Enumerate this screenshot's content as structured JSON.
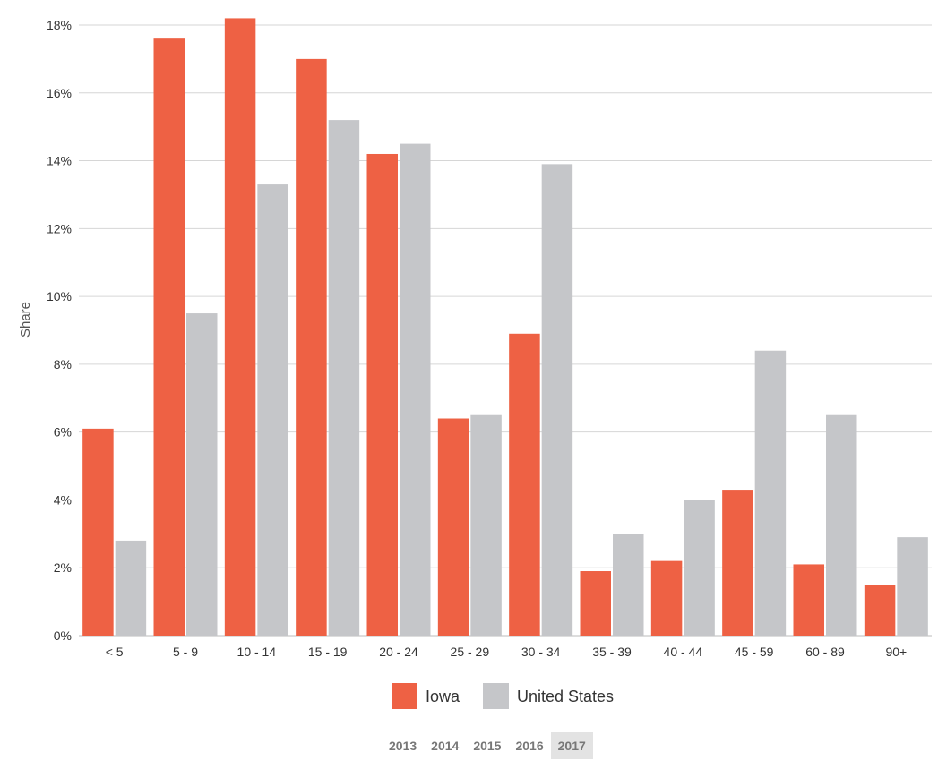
{
  "chart_data": {
    "type": "bar",
    "title": "",
    "xlabel": "",
    "ylabel": "Share",
    "ylim": [
      0,
      18
    ],
    "y_tick_values": [
      0,
      2,
      4,
      6,
      8,
      10,
      12,
      14,
      16,
      18
    ],
    "y_tick_labels": [
      "0%",
      "2%",
      "4%",
      "6%",
      "8%",
      "10%",
      "12%",
      "14%",
      "16%",
      "18%"
    ],
    "categories": [
      "< 5",
      "5 - 9",
      "10 - 14",
      "15 - 19",
      "20 - 24",
      "25 - 29",
      "30 - 34",
      "35 - 39",
      "40 - 44",
      "45 - 59",
      "60 - 89",
      "90+"
    ],
    "series": [
      {
        "name": "Iowa",
        "color": "#ee6144",
        "values": [
          6.1,
          17.6,
          18.2,
          17.0,
          14.2,
          6.4,
          8.9,
          1.9,
          2.2,
          4.3,
          2.1,
          1.5
        ]
      },
      {
        "name": "United States",
        "color": "#c5c6c9",
        "values": [
          2.8,
          9.5,
          13.3,
          15.2,
          14.5,
          6.5,
          13.9,
          3.0,
          4.0,
          8.4,
          6.5,
          2.9
        ]
      }
    ],
    "grid": true,
    "legend_position": "bottom-center"
  },
  "year_tabs": {
    "items": [
      "2013",
      "2014",
      "2015",
      "2016",
      "2017"
    ],
    "selected": "2017"
  }
}
